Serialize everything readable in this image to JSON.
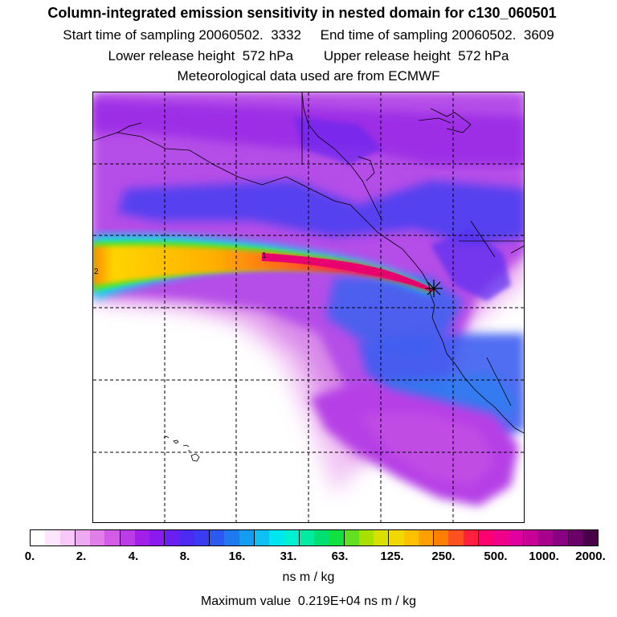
{
  "header": {
    "title": "Column-integrated emission sensitivity in nested domain for c130_060501",
    "sampling_line": "Start time of sampling 20060502.  3332     End time of sampling 20060502.  3609",
    "release_line": "Lower release height  572 hPa        Upper release height  572 hPa",
    "met_line": "Meteorological data used are from ECMWF"
  },
  "map": {
    "contour_labels": [
      "1",
      "2"
    ],
    "marker_symbol": "*",
    "colors": {
      "plume_core": "#e8006e",
      "plume_mid": "#ffd400",
      "background_low": "#8a2be2",
      "coast": "#000000"
    }
  },
  "colorbar": {
    "segment_colors": [
      "#ffffff",
      "#fde6fd",
      "#f7c8f8",
      "#efa8f2",
      "#e07fe8",
      "#d25ce6",
      "#bb3be6",
      "#a21fe8",
      "#8a1aef",
      "#6a1ff0",
      "#4b2bf2",
      "#3a3cf4",
      "#2c5af0",
      "#1f7aef",
      "#149cf0",
      "#0ebff2",
      "#00e6f0",
      "#00f0d2",
      "#00eaa0",
      "#00e070",
      "#10e040",
      "#60e020",
      "#a8e000",
      "#d8e000",
      "#f0d800",
      "#ffc000",
      "#ffa000",
      "#ff8000",
      "#ff5020",
      "#ff2040",
      "#ff0070",
      "#f00088",
      "#e000a0",
      "#c80098",
      "#a8008c",
      "#8a0082",
      "#6a0068",
      "#4a0048"
    ],
    "tick_labels": [
      "0.",
      "2.",
      "4.",
      "8.",
      "16.",
      "31.",
      "63.",
      "125.",
      "250.",
      "500.",
      "1000.",
      "2000."
    ],
    "unit": "ns m / kg",
    "max_value_text": "Maximum value  0.219E+04 ns m / kg"
  }
}
